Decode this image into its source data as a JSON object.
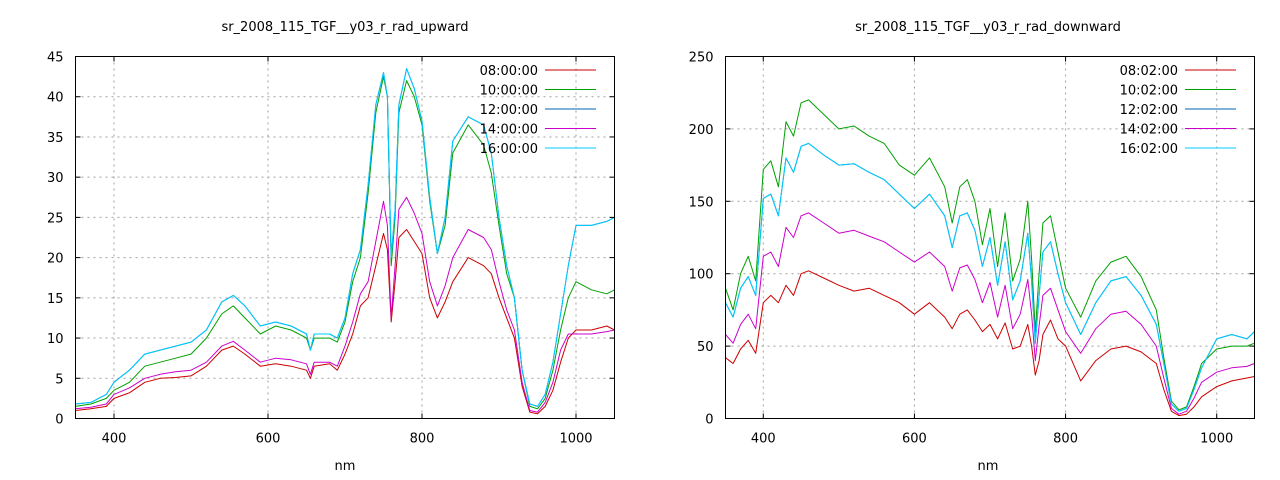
{
  "chart_data": [
    {
      "type": "line",
      "title": "sr_2008_115_TGF__y03_r_rad_upward",
      "xlabel": "nm",
      "ylabel": "",
      "xlim": [
        350,
        1050
      ],
      "ylim": [
        0,
        45
      ],
      "xticks": [
        400,
        600,
        800,
        1000
      ],
      "yticks": [
        0,
        5,
        10,
        15,
        20,
        25,
        30,
        35,
        40,
        45
      ],
      "grid": true,
      "legend_position": "top-right",
      "x": [
        350,
        370,
        390,
        400,
        420,
        440,
        460,
        480,
        500,
        520,
        540,
        555,
        570,
        590,
        610,
        630,
        650,
        655,
        660,
        680,
        690,
        700,
        710,
        720,
        730,
        740,
        750,
        755,
        760,
        765,
        770,
        780,
        790,
        800,
        810,
        820,
        830,
        840,
        860,
        880,
        890,
        900,
        910,
        920,
        930,
        940,
        950,
        960,
        970,
        980,
        990,
        1000,
        1020,
        1040,
        1050
      ],
      "series": [
        {
          "name": "08:00:00",
          "color": "#cc0000",
          "values": [
            1.0,
            1.2,
            1.5,
            2.5,
            3.2,
            4.5,
            5.0,
            5.1,
            5.3,
            6.5,
            8.5,
            9.0,
            8.0,
            6.5,
            6.8,
            6.5,
            6.0,
            5.0,
            6.5,
            6.8,
            6.0,
            8.0,
            10.5,
            14.0,
            15.0,
            19.0,
            23.0,
            21.0,
            12.0,
            17.0,
            22.5,
            23.5,
            22.0,
            20.5,
            15.0,
            12.5,
            14.5,
            17.0,
            20.0,
            19.0,
            18.0,
            15.0,
            12.5,
            10.0,
            4.0,
            0.8,
            0.6,
            1.5,
            3.5,
            7.0,
            10.0,
            11.0,
            11.0,
            11.5,
            11.0
          ]
        },
        {
          "name": "10:00:00",
          "color": "#00a000",
          "values": [
            1.5,
            1.8,
            2.5,
            3.5,
            4.5,
            6.5,
            7.0,
            7.5,
            8.0,
            10.0,
            13.0,
            14.0,
            12.5,
            10.5,
            11.5,
            11.0,
            10.0,
            8.5,
            10.0,
            10.0,
            9.5,
            12.0,
            17.0,
            20.0,
            28.0,
            38.0,
            42.5,
            40.0,
            19.0,
            25.0,
            38.0,
            42.0,
            40.0,
            36.5,
            27.0,
            20.5,
            24.0,
            33.0,
            36.5,
            34.0,
            30.5,
            24.0,
            18.0,
            15.0,
            6.0,
            1.5,
            1.2,
            2.5,
            6.0,
            11.0,
            15.0,
            17.0,
            16.0,
            15.5,
            16.0
          ]
        },
        {
          "name": "12:00:00",
          "color": "#0066b3",
          "values": [
            1.8,
            2.0,
            3.0,
            4.5,
            6.0,
            8.0,
            8.5,
            9.0,
            9.5,
            11.0,
            14.5,
            15.3,
            14.0,
            11.5,
            12.0,
            11.5,
            10.5,
            8.5,
            10.5,
            10.5,
            10.0,
            12.5,
            18.0,
            21.0,
            29.0,
            39.0,
            43.0,
            40.0,
            20.0,
            26.0,
            39.0,
            43.5,
            41.0,
            37.0,
            27.5,
            20.5,
            25.0,
            34.5,
            37.5,
            36.5,
            33.0,
            25.0,
            19.0,
            15.0,
            6.0,
            1.8,
            1.5,
            3.0,
            7.0,
            13.0,
            19.0,
            24.0,
            24.0,
            24.5,
            25.0
          ]
        },
        {
          "name": "14:00:00",
          "color": "#cc00cc",
          "values": [
            1.2,
            1.4,
            1.8,
            3.0,
            3.8,
            5.0,
            5.5,
            5.8,
            6.0,
            7.0,
            9.0,
            9.6,
            8.5,
            7.0,
            7.5,
            7.3,
            6.8,
            5.5,
            7.0,
            7.0,
            6.5,
            9.0,
            12.0,
            15.5,
            17.0,
            22.0,
            27.0,
            24.0,
            12.5,
            19.0,
            26.0,
            27.5,
            25.5,
            23.0,
            17.0,
            14.0,
            16.5,
            20.0,
            23.5,
            22.5,
            21.0,
            17.0,
            13.5,
            11.0,
            4.5,
            1.0,
            0.8,
            2.0,
            4.5,
            8.5,
            10.5,
            10.5,
            10.5,
            10.8,
            11.0
          ]
        },
        {
          "name": "16:00:00",
          "color": "#00ccff",
          "values": [
            1.8,
            2.0,
            3.0,
            4.5,
            6.0,
            8.0,
            8.5,
            9.0,
            9.5,
            11.0,
            14.5,
            15.3,
            14.0,
            11.5,
            12.0,
            11.5,
            10.5,
            8.5,
            10.5,
            10.5,
            10.0,
            12.5,
            18.0,
            21.0,
            29.0,
            39.0,
            43.0,
            40.0,
            20.0,
            26.0,
            39.0,
            43.5,
            41.0,
            37.0,
            27.5,
            20.5,
            25.0,
            34.5,
            37.5,
            36.5,
            33.0,
            25.0,
            19.0,
            15.0,
            6.0,
            1.8,
            1.5,
            3.0,
            7.0,
            13.0,
            19.0,
            24.0,
            24.0,
            24.5,
            25.0
          ]
        }
      ]
    },
    {
      "type": "line",
      "title": "sr_2008_115_TGF__y03_r_rad_downward",
      "xlabel": "nm",
      "ylabel": "",
      "xlim": [
        350,
        1050
      ],
      "ylim": [
        0,
        250
      ],
      "xticks": [
        400,
        600,
        800,
        1000
      ],
      "yticks": [
        0,
        50,
        100,
        150,
        200,
        250
      ],
      "grid": true,
      "legend_position": "top-right",
      "x": [
        350,
        360,
        370,
        380,
        390,
        400,
        410,
        420,
        430,
        440,
        450,
        460,
        480,
        500,
        520,
        540,
        560,
        580,
        600,
        620,
        640,
        650,
        660,
        670,
        680,
        690,
        700,
        710,
        720,
        730,
        740,
        750,
        755,
        760,
        765,
        770,
        780,
        790,
        800,
        820,
        840,
        860,
        880,
        900,
        920,
        930,
        940,
        950,
        960,
        970,
        980,
        1000,
        1020,
        1040,
        1050
      ],
      "series": [
        {
          "name": "08:02:00",
          "color": "#cc0000",
          "values": [
            42,
            38,
            48,
            54,
            45,
            80,
            85,
            80,
            92,
            85,
            100,
            102,
            97,
            92,
            88,
            90,
            85,
            80,
            72,
            80,
            70,
            62,
            72,
            75,
            68,
            60,
            65,
            55,
            66,
            48,
            50,
            65,
            50,
            30,
            40,
            58,
            68,
            55,
            50,
            26,
            40,
            48,
            50,
            46,
            38,
            20,
            5,
            2,
            3,
            8,
            15,
            22,
            26,
            28,
            29
          ]
        },
        {
          "name": "10:02:00",
          "color": "#00a000",
          "values": [
            90,
            75,
            100,
            112,
            95,
            172,
            178,
            160,
            205,
            195,
            218,
            220,
            210,
            200,
            202,
            195,
            190,
            175,
            168,
            180,
            160,
            135,
            160,
            165,
            150,
            120,
            145,
            105,
            142,
            95,
            110,
            150,
            110,
            60,
            100,
            135,
            140,
            115,
            90,
            70,
            95,
            108,
            112,
            98,
            75,
            42,
            12,
            6,
            8,
            22,
            38,
            48,
            50,
            50,
            52
          ]
        },
        {
          "name": "12:02:00",
          "color": "#0066b3",
          "values": [
            80,
            70,
            90,
            98,
            85,
            152,
            155,
            140,
            180,
            170,
            188,
            190,
            182,
            175,
            176,
            170,
            165,
            155,
            145,
            155,
            140,
            118,
            140,
            142,
            130,
            105,
            125,
            92,
            122,
            82,
            95,
            128,
            95,
            52,
            85,
            115,
            122,
            100,
            80,
            58,
            80,
            95,
            98,
            85,
            65,
            38,
            10,
            5,
            7,
            20,
            35,
            55,
            58,
            55,
            60
          ]
        },
        {
          "name": "14:02:00",
          "color": "#cc00cc",
          "values": [
            58,
            52,
            65,
            72,
            62,
            112,
            115,
            105,
            132,
            125,
            140,
            142,
            135,
            128,
            130,
            126,
            122,
            115,
            108,
            115,
            105,
            88,
            104,
            106,
            96,
            80,
            94,
            70,
            92,
            62,
            72,
            96,
            72,
            40,
            64,
            85,
            90,
            75,
            60,
            45,
            62,
            72,
            74,
            65,
            50,
            28,
            7,
            3,
            5,
            14,
            25,
            32,
            35,
            36,
            38
          ]
        },
        {
          "name": "16:02:00",
          "color": "#00ccff",
          "values": [
            80,
            70,
            90,
            98,
            85,
            152,
            155,
            140,
            180,
            170,
            188,
            190,
            182,
            175,
            176,
            170,
            165,
            155,
            145,
            155,
            140,
            118,
            140,
            142,
            130,
            105,
            125,
            92,
            122,
            82,
            95,
            128,
            95,
            52,
            85,
            115,
            122,
            100,
            80,
            58,
            80,
            95,
            98,
            85,
            65,
            38,
            10,
            5,
            7,
            20,
            35,
            55,
            58,
            55,
            60
          ]
        }
      ]
    }
  ]
}
